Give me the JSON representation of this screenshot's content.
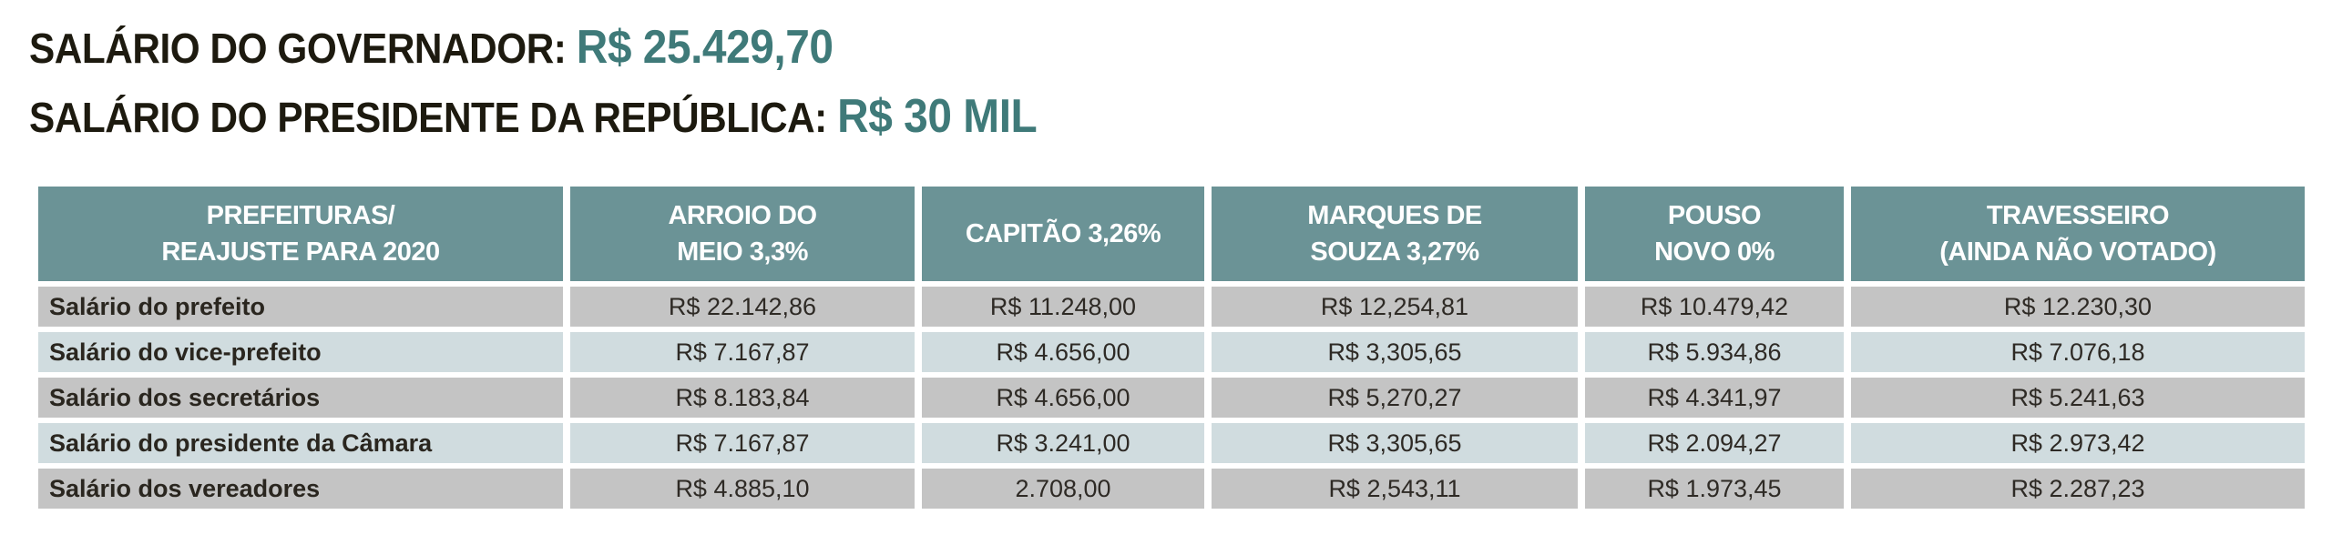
{
  "titles": [
    {
      "label": "SALÁRIO DO GOVERNADOR:",
      "value": "R$ 25.429,70"
    },
    {
      "label": "SALÁRIO DO PRESIDENTE DA REPÚBLICA:",
      "value": "R$ 30 MIL"
    }
  ],
  "table": {
    "headers": [
      [
        "PREFEITURAS/",
        "REAJUSTE PARA 2020"
      ],
      [
        "ARROIO DO",
        "MEIO 3,3%"
      ],
      [
        "CAPITÃO 3,26%"
      ],
      [
        "MARQUES DE",
        "SOUZA 3,27%"
      ],
      [
        "POUSO",
        "NOVO 0%"
      ],
      [
        "TRAVESSEIRO",
        "(AINDA NÃO VOTADO)"
      ]
    ],
    "rows": [
      [
        "Salário do prefeito",
        "R$ 22.142,86",
        "R$ 11.248,00",
        "R$ 12,254,81",
        "R$ 10.479,42",
        "R$ 12.230,30"
      ],
      [
        "Salário do vice-prefeito",
        "R$ 7.167,87",
        "R$ 4.656,00",
        "R$ 3,305,65",
        "R$ 5.934,86",
        "R$ 7.076,18"
      ],
      [
        "Salário dos secretários",
        "R$ 8.183,84",
        "R$ 4.656,00",
        "R$ 5,270,27",
        "R$ 4.341,97",
        "R$ 5.241,63"
      ],
      [
        "Salário do presidente da Câmara",
        "R$ 7.167,87",
        "R$ 3.241,00",
        "R$ 3,305,65",
        "R$ 2.094,27",
        "R$ 2.973,42"
      ],
      [
        "Salário dos vereadores",
        "R$ 4.885,10",
        "2.708,00",
        "R$ 2,543,11",
        "R$ 1.973,45",
        "R$ 2.287,23"
      ]
    ]
  },
  "colors": {
    "header_bg": "#6b9396",
    "title_accent": "#3f7a79",
    "row_gray": "#c4c4c4",
    "row_light": "#d0dcdf"
  }
}
